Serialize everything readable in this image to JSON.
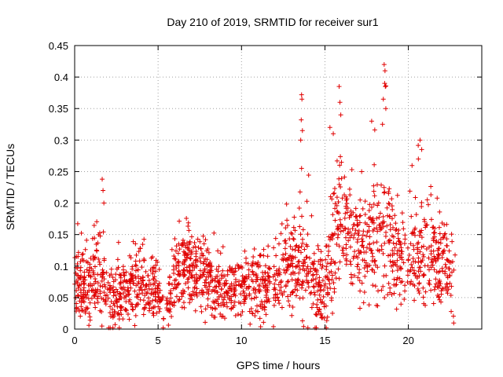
{
  "chart_data": {
    "type": "scatter",
    "title": "Day 210 of 2019, SRMTID for receiver sur1",
    "xlabel": "GPS time / hours",
    "ylabel": "SRMTID / TECUs",
    "xlim": [
      0,
      24.4
    ],
    "ylim": [
      0,
      0.45
    ],
    "x_ticks": [
      0,
      5,
      10,
      15,
      20
    ],
    "y_ticks": [
      0,
      0.05,
      0.1,
      0.15,
      0.2,
      0.25,
      0.3,
      0.35,
      0.4,
      0.45
    ],
    "x_tick_labels": [
      "0",
      "5",
      "10",
      "15",
      "20"
    ],
    "y_tick_labels": [
      "0",
      "0.05",
      "0.1",
      "0.15",
      "0.2",
      "0.25",
      "0.3",
      "0.35",
      "0.4",
      "0.45"
    ],
    "grid": true,
    "marker": "+",
    "color": "#e00000",
    "gaps_hours": [
      [
        5.35,
        5.5
      ],
      [
        11.7,
        11.85
      ],
      [
        19.8,
        19.95
      ]
    ],
    "envelope": [
      {
        "x": 0.0,
        "mean": 0.07,
        "spread": 0.05,
        "peak": 0.17
      },
      {
        "x": 1.0,
        "mean": 0.07,
        "spread": 0.05,
        "peak": 0.16
      },
      {
        "x": 1.6,
        "mean": 0.09,
        "spread": 0.06,
        "peak": 0.24
      },
      {
        "x": 2.0,
        "mean": 0.04,
        "spread": 0.035,
        "peak": 0.11
      },
      {
        "x": 3.0,
        "mean": 0.06,
        "spread": 0.045,
        "peak": 0.17
      },
      {
        "x": 4.0,
        "mean": 0.07,
        "spread": 0.045,
        "peak": 0.15
      },
      {
        "x": 5.0,
        "mean": 0.06,
        "spread": 0.04,
        "peak": 0.14
      },
      {
        "x": 5.3,
        "mean": 0.03,
        "spread": 0.025,
        "peak": 0.08
      },
      {
        "x": 6.0,
        "mean": 0.07,
        "spread": 0.04,
        "peak": 0.15
      },
      {
        "x": 6.5,
        "mean": 0.1,
        "spread": 0.05,
        "peak": 0.19
      },
      {
        "x": 7.5,
        "mean": 0.09,
        "spread": 0.045,
        "peak": 0.19
      },
      {
        "x": 8.5,
        "mean": 0.07,
        "spread": 0.04,
        "peak": 0.15
      },
      {
        "x": 9.5,
        "mean": 0.06,
        "spread": 0.035,
        "peak": 0.13
      },
      {
        "x": 10.5,
        "mean": 0.07,
        "spread": 0.04,
        "peak": 0.15
      },
      {
        "x": 11.5,
        "mean": 0.06,
        "spread": 0.04,
        "peak": 0.13
      },
      {
        "x": 12.5,
        "mean": 0.09,
        "spread": 0.05,
        "peak": 0.17
      },
      {
        "x": 13.5,
        "mean": 0.11,
        "spread": 0.07,
        "peak": 0.37
      },
      {
        "x": 14.5,
        "mean": 0.06,
        "spread": 0.05,
        "peak": 0.15
      },
      {
        "x": 15.0,
        "mean": 0.05,
        "spread": 0.05,
        "peak": 0.12
      },
      {
        "x": 15.5,
        "mean": 0.15,
        "spread": 0.09,
        "peak": 0.33
      },
      {
        "x": 16.0,
        "mean": 0.18,
        "spread": 0.09,
        "peak": 0.38
      },
      {
        "x": 17.0,
        "mean": 0.12,
        "spread": 0.07,
        "peak": 0.25
      },
      {
        "x": 18.0,
        "mean": 0.15,
        "spread": 0.08,
        "peak": 0.33
      },
      {
        "x": 18.6,
        "mean": 0.16,
        "spread": 0.09,
        "peak": 0.42
      },
      {
        "x": 19.5,
        "mean": 0.11,
        "spread": 0.06,
        "peak": 0.22
      },
      {
        "x": 20.5,
        "mean": 0.11,
        "spread": 0.07,
        "peak": 0.3
      },
      {
        "x": 21.5,
        "mean": 0.12,
        "spread": 0.07,
        "peak": 0.24
      },
      {
        "x": 22.5,
        "mean": 0.08,
        "spread": 0.06,
        "peak": 0.18
      }
    ],
    "spikes": [
      {
        "x": 1.65,
        "y": 0.238
      },
      {
        "x": 1.7,
        "y": 0.22
      },
      {
        "x": 1.75,
        "y": 0.2
      },
      {
        "x": 13.6,
        "y": 0.372
      },
      {
        "x": 13.62,
        "y": 0.365
      },
      {
        "x": 13.58,
        "y": 0.332
      },
      {
        "x": 13.65,
        "y": 0.315
      },
      {
        "x": 13.55,
        "y": 0.3
      },
      {
        "x": 13.6,
        "y": 0.255
      },
      {
        "x": 15.85,
        "y": 0.385
      },
      {
        "x": 15.9,
        "y": 0.36
      },
      {
        "x": 15.95,
        "y": 0.34
      },
      {
        "x": 18.55,
        "y": 0.42
      },
      {
        "x": 18.6,
        "y": 0.41
      },
      {
        "x": 18.58,
        "y": 0.39
      },
      {
        "x": 18.62,
        "y": 0.385
      },
      {
        "x": 18.5,
        "y": 0.365
      },
      {
        "x": 18.65,
        "y": 0.35
      },
      {
        "x": 18.45,
        "y": 0.325
      },
      {
        "x": 20.7,
        "y": 0.3
      },
      {
        "x": 20.8,
        "y": 0.285
      },
      {
        "x": 20.6,
        "y": 0.27
      },
      {
        "x": 15.3,
        "y": 0.32
      },
      {
        "x": 15.5,
        "y": 0.31
      },
      {
        "x": 17.2,
        "y": 0.25
      },
      {
        "x": 17.8,
        "y": 0.33
      }
    ]
  }
}
